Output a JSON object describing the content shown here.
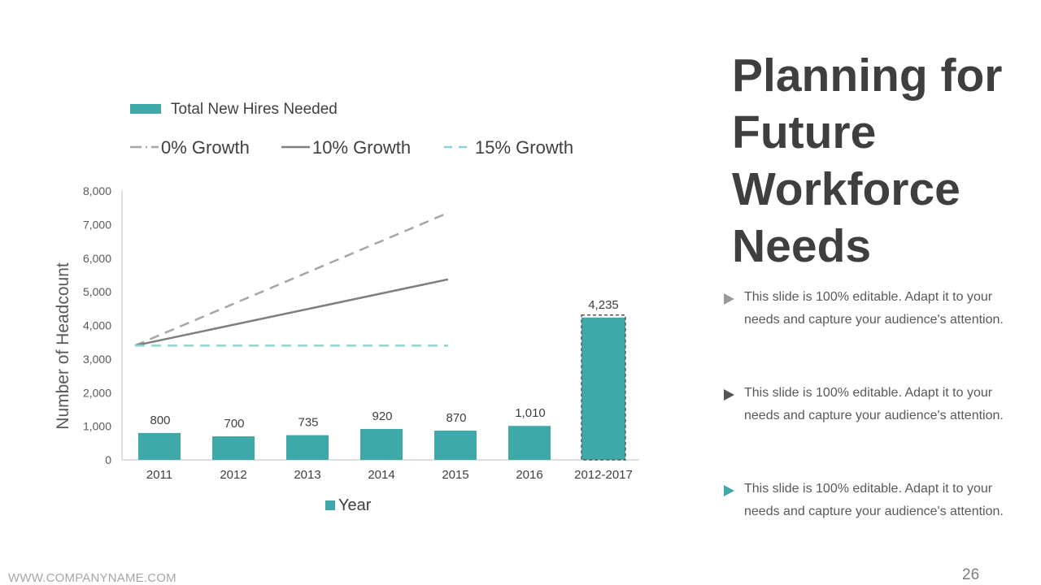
{
  "slide": {
    "title_lines": [
      "Planning for",
      "Future",
      "Workforce",
      "Needs"
    ],
    "bullets": [
      {
        "text": "This slide is 100% editable. Adapt it to your needs and capture your audience's attention.",
        "icon": "triangle-bullet-icon",
        "color": "#9a9a9a"
      },
      {
        "text": "This slide is 100% editable. Adapt it to your needs and capture your audience's attention.",
        "icon": "triangle-bullet-icon",
        "color": "#555555"
      },
      {
        "text": "This slide is 100% editable. Adapt it to your needs and capture your audience's attention.",
        "icon": "triangle-bullet-icon",
        "color": "#3fa9a9"
      }
    ],
    "footer_url": "WWW.COMPANYNAME.COM",
    "page_number": "26"
  },
  "chart_data": {
    "type": "bar",
    "ylabel": "Number of Headcount",
    "xlabel": "Year",
    "ylim": [
      0,
      8000
    ],
    "yticks": [
      0,
      1000,
      2000,
      3000,
      4000,
      5000,
      6000,
      7000,
      8000
    ],
    "ytick_labels": [
      "0",
      "1,000",
      "2,000",
      "3,000",
      "4,000",
      "5,000",
      "6,000",
      "7,000",
      "8,000"
    ],
    "grid": false,
    "categories": [
      "2011",
      "2012",
      "2013",
      "2014",
      "2015",
      "2016",
      "2012-2017"
    ],
    "series": [
      {
        "name": "Total New Hires Needed",
        "color": "#3fa9a9",
        "values": [
          800,
          700,
          735,
          920,
          870,
          1010,
          4235
        ],
        "labels": [
          "800",
          "700",
          "735",
          "920",
          "870",
          "1,010",
          "4,235"
        ]
      }
    ],
    "total_bar_dashed_outline": true,
    "lines": [
      {
        "name": "0% Growth",
        "color": "#a6a6a6",
        "style": "dashed",
        "x_range": [
          "2011",
          "2015"
        ],
        "values": [
          3400,
          7350
        ]
      },
      {
        "name": "10% Growth",
        "color": "#7f7f7f",
        "style": "solid",
        "x_range": [
          "2011",
          "2015"
        ],
        "values": [
          3400,
          5370
        ]
      },
      {
        "name": "15% Growth",
        "color": "#8fd3d3",
        "style": "dashed",
        "x_range": [
          "2011",
          "2015"
        ],
        "values": [
          3400,
          3400
        ]
      }
    ],
    "legend": {
      "placement": "top",
      "bar_label": "Total New Hires Needed",
      "bottom_label": "Year"
    }
  }
}
